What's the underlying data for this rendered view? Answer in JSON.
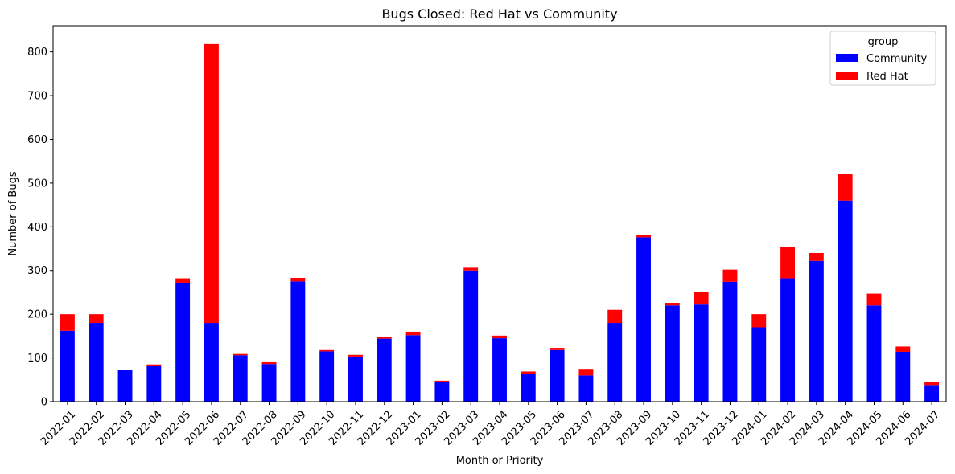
{
  "chart_data": {
    "type": "bar",
    "stacked": true,
    "title": "Bugs Closed: Red Hat vs Community",
    "xlabel": "Month or Priority",
    "ylabel": "Number of Bugs",
    "ylim": [
      0,
      860
    ],
    "yticks": [
      0,
      100,
      200,
      300,
      400,
      500,
      600,
      700,
      800
    ],
    "grid": false,
    "legend": {
      "title": "group",
      "position": "top-right"
    },
    "categories": [
      "2022-01",
      "2022-02",
      "2022-03",
      "2022-04",
      "2022-05",
      "2022-06",
      "2022-07",
      "2022-08",
      "2022-09",
      "2022-10",
      "2022-11",
      "2022-12",
      "2023-01",
      "2023-02",
      "2023-03",
      "2023-04",
      "2023-05",
      "2023-06",
      "2023-07",
      "2023-08",
      "2023-09",
      "2023-10",
      "2023-11",
      "2023-12",
      "2024-01",
      "2024-02",
      "2024-03",
      "2024-04",
      "2024-05",
      "2024-06",
      "2024-07"
    ],
    "series": [
      {
        "name": "Community",
        "color": "#0000ff",
        "values": [
          162,
          180,
          72,
          82,
          272,
          180,
          106,
          86,
          275,
          115,
          103,
          144,
          152,
          45,
          300,
          145,
          64,
          118,
          60,
          180,
          376,
          220,
          222,
          274,
          170,
          282,
          322,
          460,
          220,
          114,
          38
        ]
      },
      {
        "name": "Red Hat",
        "color": "#ff0000",
        "values": [
          38,
          20,
          0,
          3,
          10,
          638,
          3,
          6,
          8,
          3,
          4,
          4,
          8,
          3,
          8,
          6,
          5,
          5,
          15,
          30,
          6,
          6,
          28,
          28,
          30,
          72,
          18,
          60,
          27,
          12,
          7
        ]
      }
    ]
  }
}
